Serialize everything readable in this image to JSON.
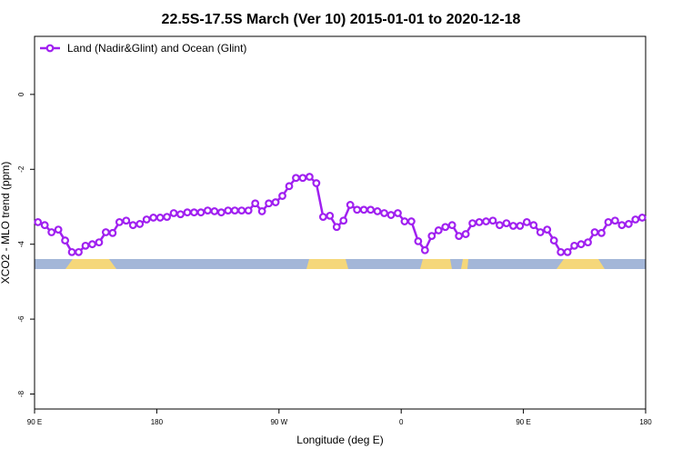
{
  "chart_data": {
    "type": "line",
    "title": "22.5S-17.5S March (Ver 10)   2015-01-01 to 2020-12-18",
    "x_label": "Longitude (deg E)",
    "y_label": "XCO2 - MLO trend (ppm)",
    "xlim": [
      90,
      540
    ],
    "ylim": [
      -8.4,
      1.55
    ],
    "xticks": [
      {
        "value": 90,
        "label": "90 E"
      },
      {
        "value": 180,
        "label": "180"
      },
      {
        "value": 270,
        "label": "90 W"
      },
      {
        "value": 360,
        "label": "0"
      },
      {
        "value": 450,
        "label": "90 E"
      },
      {
        "value": 540,
        "label": "180"
      }
    ],
    "yticks": [
      0,
      -2,
      -4,
      -6,
      -8
    ],
    "legend": "top-left",
    "x": [
      92.5,
      97.5,
      102.5,
      107.5,
      112.5,
      117.5,
      122.5,
      127.5,
      132.5,
      137.5,
      142.5,
      147.5,
      152.5,
      157.5,
      162.5,
      167.5,
      172.5,
      177.5,
      182.5,
      187.5,
      192.5,
      197.5,
      202.5,
      207.5,
      212.5,
      217.5,
      222.5,
      227.5,
      232.5,
      237.5,
      242.5,
      247.5,
      252.5,
      257.5,
      262.5,
      267.5,
      272.5,
      277.5,
      282.5,
      287.5,
      292.5,
      297.5,
      302.5,
      307.5,
      312.5,
      317.5,
      322.5,
      327.5,
      332.5,
      337.5,
      342.5,
      347.5,
      352.5,
      357.5,
      362.5,
      367.5,
      372.5,
      377.5,
      382.5,
      387.5,
      392.5,
      397.5,
      402.5,
      407.5,
      412.5,
      417.5,
      422.5,
      427.5,
      432.5,
      437.5,
      442.5,
      447.5,
      452.5,
      457.5,
      462.5,
      467.5,
      472.5,
      477.5,
      482.5,
      487.5,
      492.5,
      497.5,
      502.5,
      507.5,
      512.5,
      517.5,
      522.5,
      527.5,
      532.5,
      537.5
    ],
    "series": [
      {
        "name": "Land (Nadir&Glint) and Ocean (Glint)",
        "color": "#a020f0",
        "values": [
          -3.41,
          -3.49,
          -3.68,
          -3.61,
          -3.9,
          -4.21,
          -4.21,
          -4.04,
          -4.0,
          -3.95,
          -3.68,
          -3.7,
          -3.41,
          -3.37,
          -3.49,
          -3.46,
          -3.34,
          -3.29,
          -3.29,
          -3.27,
          -3.17,
          -3.2,
          -3.15,
          -3.15,
          -3.15,
          -3.1,
          -3.12,
          -3.15,
          -3.1,
          -3.1,
          -3.1,
          -3.1,
          -2.91,
          -3.12,
          -2.91,
          -2.88,
          -2.71,
          -2.45,
          -2.23,
          -2.23,
          -2.2,
          -2.37,
          -3.27,
          -3.24,
          -3.54,
          -3.37,
          -2.95,
          -3.08,
          -3.08,
          -3.08,
          -3.12,
          -3.17,
          -3.22,
          -3.17,
          -3.39,
          -3.39,
          -3.92,
          -4.16,
          -3.78,
          -3.63,
          -3.54,
          -3.49,
          -3.78,
          -3.73,
          -3.44,
          -3.41,
          -3.39,
          -3.37,
          -3.49,
          -3.44,
          -3.51,
          -3.51,
          -3.41,
          -3.49,
          -3.68,
          -3.61,
          -3.9,
          -4.21,
          -4.21,
          -4.04,
          -4.0,
          -3.95,
          -3.68,
          -3.7,
          -3.41,
          -3.37,
          -3.49,
          -3.46,
          -3.34,
          -3.29
        ]
      }
    ]
  }
}
